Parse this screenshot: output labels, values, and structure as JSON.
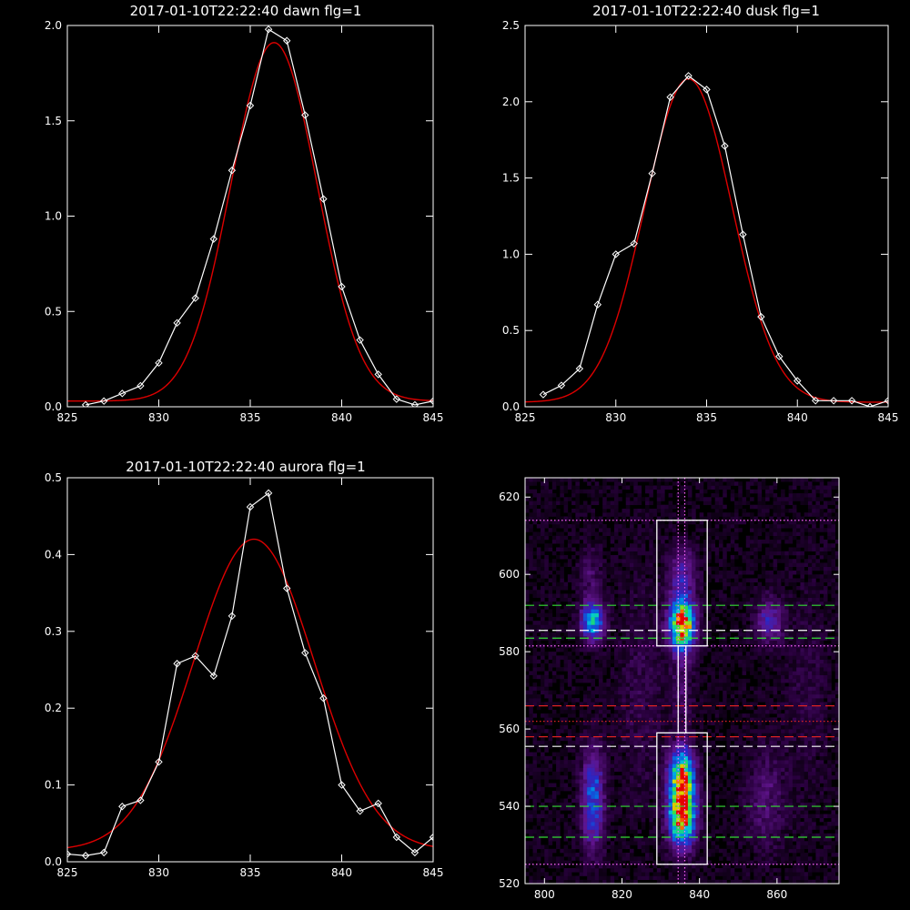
{
  "chart_data": [
    {
      "type": "line",
      "title": "2017-01-10T22:22:40 dawn flg=1",
      "xlim": [
        825,
        845
      ],
      "ylim": [
        0,
        2.0
      ],
      "xticks": [
        825,
        830,
        835,
        840,
        845
      ],
      "yticks": [
        0.0,
        0.5,
        1.0,
        1.5,
        2.0
      ],
      "ytick_labels": [
        "0.0",
        "0.5",
        "1.0",
        "1.5",
        "2.0"
      ],
      "series": [
        {
          "color": "#ffffff",
          "markers": "diamond",
          "x": [
            826,
            827,
            828,
            829,
            830,
            831,
            832,
            833,
            834,
            835,
            836,
            837,
            838,
            839,
            840,
            841,
            842,
            843,
            844,
            845
          ],
          "y": [
            0.01,
            0.03,
            0.07,
            0.11,
            0.23,
            0.44,
            0.57,
            0.88,
            1.24,
            1.58,
            1.98,
            1.92,
            1.53,
            1.09,
            0.63,
            0.35,
            0.17,
            0.04,
            0.01,
            0.03
          ]
        },
        {
          "color": "#dd0000",
          "fit": "gaussian",
          "amp": 1.88,
          "center": 836.3,
          "sigma": 2.35,
          "offset": 0.03
        }
      ]
    },
    {
      "type": "line",
      "title": "2017-01-10T22:22:40 dusk flg=1",
      "xlim": [
        825,
        845
      ],
      "ylim": [
        0,
        2.5
      ],
      "xticks": [
        825,
        830,
        835,
        840,
        845
      ],
      "yticks": [
        0.0,
        0.5,
        1.0,
        1.5,
        2.0,
        2.5
      ],
      "ytick_labels": [
        "0.0",
        "0.5",
        "1.0",
        "1.5",
        "2.0",
        "2.5"
      ],
      "series": [
        {
          "color": "#ffffff",
          "markers": "diamond",
          "x": [
            826,
            827,
            828,
            829,
            830,
            831,
            832,
            833,
            834,
            835,
            836,
            837,
            838,
            839,
            840,
            841,
            842,
            843,
            844,
            845
          ],
          "y": [
            0.08,
            0.14,
            0.25,
            0.67,
            1.0,
            1.07,
            1.53,
            2.03,
            2.17,
            2.08,
            1.71,
            1.13,
            0.59,
            0.33,
            0.17,
            0.04,
            0.04,
            0.04,
            0.0,
            0.04
          ]
        },
        {
          "color": "#dd0000",
          "fit": "gaussian",
          "amp": 2.12,
          "center": 834.0,
          "sigma": 2.4,
          "offset": 0.03
        }
      ]
    },
    {
      "type": "line",
      "title": "2017-01-10T22:22:40 aurora flg=1",
      "xlim": [
        825,
        845
      ],
      "ylim": [
        0,
        0.5
      ],
      "xticks": [
        825,
        830,
        835,
        840,
        845
      ],
      "yticks": [
        0.0,
        0.1,
        0.2,
        0.3,
        0.4,
        0.5
      ],
      "ytick_labels": [
        "0.0",
        "0.1",
        "0.2",
        "0.3",
        "0.4",
        "0.5"
      ],
      "series": [
        {
          "color": "#ffffff",
          "markers": "diamond",
          "x": [
            825,
            826,
            827,
            828,
            829,
            830,
            831,
            832,
            833,
            834,
            835,
            836,
            837,
            838,
            839,
            840,
            841,
            842,
            843,
            844,
            845
          ],
          "y": [
            0.01,
            0.008,
            0.012,
            0.072,
            0.08,
            0.13,
            0.258,
            0.268,
            0.242,
            0.32,
            0.462,
            0.48,
            0.356,
            0.272,
            0.213,
            0.1,
            0.066,
            0.076,
            0.032,
            0.012,
            0.032
          ]
        },
        {
          "color": "#dd0000",
          "fit": "gaussian",
          "amp": 0.405,
          "center": 835.2,
          "sigma": 3.3,
          "offset": 0.015
        }
      ]
    },
    {
      "type": "heatmap",
      "title": "",
      "xlim": [
        795,
        876
      ],
      "ylim": [
        520,
        625
      ],
      "xticks": [
        800,
        820,
        840,
        860
      ],
      "yticks": [
        520,
        540,
        560,
        580,
        600,
        620
      ],
      "blobs": [
        {
          "x": 835.5,
          "y": 587,
          "sx": 2.2,
          "sy": 4.5,
          "amp": 1.0
        },
        {
          "x": 835.5,
          "y": 538,
          "sx": 2.3,
          "sy": 5.5,
          "amp": 1.0
        },
        {
          "x": 835.5,
          "y": 548,
          "sx": 2.2,
          "sy": 5.0,
          "amp": 0.75
        },
        {
          "x": 835.5,
          "y": 600,
          "sx": 2.5,
          "sy": 5.0,
          "amp": 0.25
        },
        {
          "x": 835.5,
          "y": 570,
          "sx": 2.0,
          "sy": 8.0,
          "amp": 0.12
        },
        {
          "x": 812.5,
          "y": 588,
          "sx": 2.0,
          "sy": 3.5,
          "amp": 0.6
        },
        {
          "x": 812.5,
          "y": 542,
          "sx": 2.0,
          "sy": 9.0,
          "amp": 0.42
        },
        {
          "x": 812.0,
          "y": 600,
          "sx": 2.0,
          "sy": 5.0,
          "amp": 0.12
        },
        {
          "x": 858,
          "y": 588,
          "sx": 2.5,
          "sy": 4.0,
          "amp": 0.28
        },
        {
          "x": 857,
          "y": 542,
          "sx": 3.5,
          "sy": 9.0,
          "amp": 0.15
        },
        {
          "x": 825,
          "y": 570,
          "sx": 4.0,
          "sy": 20,
          "amp": 0.08
        },
        {
          "x": 868,
          "y": 570,
          "sx": 4.0,
          "sy": 20,
          "amp": 0.06
        }
      ],
      "overlays": [
        {
          "kind": "hline",
          "y": 592,
          "color": "#33dd33",
          "dash": "dashed"
        },
        {
          "kind": "hline",
          "y": 583.5,
          "color": "#33dd33",
          "dash": "dashed"
        },
        {
          "kind": "hline",
          "y": 540,
          "color": "#33dd33",
          "dash": "dashed"
        },
        {
          "kind": "hline",
          "y": 532,
          "color": "#33dd33",
          "dash": "dashed"
        },
        {
          "kind": "hline",
          "y": 585.5,
          "color": "#ffffff",
          "dash": "dashed"
        },
        {
          "kind": "hline",
          "y": 555.5,
          "color": "#ffffff",
          "dash": "dashed"
        },
        {
          "kind": "hline",
          "y": 566,
          "color": "#dd2222",
          "dash": "dashed"
        },
        {
          "kind": "hline",
          "y": 558,
          "color": "#dd2222",
          "dash": "dashed"
        },
        {
          "kind": "hline",
          "y": 562,
          "color": "#dd2222",
          "dash": "dotted"
        },
        {
          "kind": "hline",
          "y": 614,
          "color": "#ff66ff",
          "dash": "dotted"
        },
        {
          "kind": "hline",
          "y": 581.5,
          "color": "#ff66ff",
          "dash": "dotted"
        },
        {
          "kind": "hline",
          "y": 525,
          "color": "#ff66ff",
          "dash": "dotted"
        },
        {
          "kind": "vline",
          "x": 834.5,
          "color": "#ff66ff",
          "dash": "dotted"
        },
        {
          "kind": "vline",
          "x": 836.2,
          "color": "#ff66ff",
          "dash": "dotted"
        },
        {
          "kind": "box",
          "x0": 829,
          "x1": 842,
          "y0": 581.5,
          "y1": 614,
          "color": "#ffffff"
        },
        {
          "kind": "box",
          "x0": 829,
          "x1": 842,
          "y0": 525,
          "y1": 559,
          "color": "#ffffff"
        },
        {
          "kind": "box",
          "x0": 834.5,
          "x1": 836.5,
          "y0": 559,
          "y1": 581.5,
          "color": "#ffffff"
        }
      ]
    }
  ]
}
